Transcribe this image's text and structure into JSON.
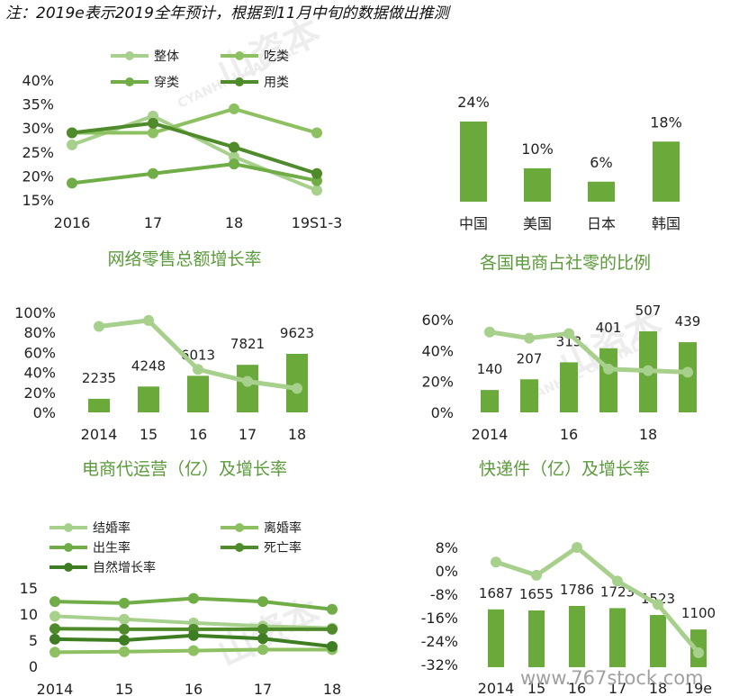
{
  "note": "注：2019e表示2019全年预计，根据到11月中旬的数据做出推测",
  "watermark": {
    "cn": "山资本",
    "en": "CYANHILL CAPITAL",
    "url": "www.767stock.com"
  },
  "colors": {
    "light": "#a8d08d",
    "mid": "#8dc060",
    "green": "#70ad47",
    "dark": "#4f8a2b",
    "darkest": "#3e7d21",
    "bar": "#6aaa3a"
  },
  "chart_data": [
    {
      "id": "c1",
      "type": "line",
      "title": "网络零售总额增长率",
      "categories": [
        "2016",
        "17",
        "18",
        "19S1-3"
      ],
      "yticks": [
        "15%",
        "20%",
        "25%",
        "30%",
        "35%",
        "40%"
      ],
      "ylim": [
        15,
        40
      ],
      "legend": [
        "整体",
        "吃类",
        "穿类",
        "用类"
      ],
      "series": [
        {
          "name": "整体",
          "values": [
            26.5,
            32.5,
            24,
            17
          ],
          "color": "#a8d08d"
        },
        {
          "name": "吃类",
          "values": [
            29,
            29,
            34,
            29
          ],
          "color": "#8dc060"
        },
        {
          "name": "穿类",
          "values": [
            18.5,
            20.5,
            22.5,
            19
          ],
          "color": "#70ad47"
        },
        {
          "name": "用类",
          "values": [
            29,
            31,
            26,
            20.5
          ],
          "color": "#4f8a2b"
        }
      ]
    },
    {
      "id": "c2",
      "type": "bar",
      "title": "各国电商占社零的比例",
      "categories": [
        "中国",
        "美国",
        "日本",
        "韩国"
      ],
      "values": [
        24,
        10,
        6,
        18
      ],
      "labels": [
        "24%",
        "10%",
        "6%",
        "18%"
      ]
    },
    {
      "id": "c3",
      "type": "bar+line",
      "title": "电商代运营（亿）及增长率",
      "categories": [
        "2014",
        "15",
        "16",
        "17",
        "18"
      ],
      "bar_values": [
        2235,
        4248,
        6013,
        7821,
        9623
      ],
      "bar_labels": [
        "2235",
        "4248",
        "6013",
        "7821",
        "9623"
      ],
      "line_values": [
        86,
        92,
        43,
        31,
        24
      ],
      "yticks": [
        "0%",
        "20%",
        "40%",
        "60%",
        "80%",
        "100%"
      ],
      "ylim": [
        0,
        100
      ]
    },
    {
      "id": "c4",
      "type": "bar+line",
      "title": "快递件（亿）及增长率",
      "categories": [
        "2014",
        "",
        "16",
        "",
        "18",
        ""
      ],
      "bar_values": [
        140,
        207,
        313,
        401,
        507,
        439
      ],
      "bar_labels": [
        "140",
        "207",
        "313",
        "401",
        "507",
        "439"
      ],
      "line_values": [
        52,
        48,
        51,
        28,
        27,
        26
      ],
      "yticks": [
        "0%",
        "20%",
        "40%",
        "60%"
      ],
      "ylim": [
        0,
        60
      ]
    },
    {
      "id": "c5",
      "type": "line",
      "title": "",
      "categories": [
        "2014",
        "15",
        "16",
        "17",
        "18"
      ],
      "yticks": [
        "0",
        "5",
        "10",
        "15"
      ],
      "ylim": [
        0,
        15
      ],
      "legend": [
        "结婚率",
        "离婚率",
        "出生率",
        "死亡率",
        "自然增长率"
      ],
      "series": [
        {
          "name": "结婚率",
          "values": [
            9.6,
            9.0,
            8.3,
            7.7,
            7.3
          ],
          "color": "#a8d08d"
        },
        {
          "name": "离婚率",
          "values": [
            2.7,
            2.8,
            3.0,
            3.2,
            3.2
          ],
          "color": "#8dc060"
        },
        {
          "name": "出生率",
          "values": [
            12.4,
            12.1,
            13.0,
            12.4,
            10.9
          ],
          "color": "#70ad47"
        },
        {
          "name": "死亡率",
          "values": [
            7.2,
            7.1,
            7.1,
            7.1,
            7.1
          ],
          "color": "#4f8a2b"
        },
        {
          "name": "自然增长率",
          "values": [
            5.2,
            5.0,
            5.9,
            5.3,
            3.8
          ],
          "color": "#3e7d21"
        }
      ]
    },
    {
      "id": "c6",
      "type": "bar+line",
      "title": "",
      "categories": [
        "2014",
        "15",
        "16",
        "17",
        "18",
        "19e"
      ],
      "bar_values": [
        1687,
        1655,
        1786,
        1723,
        1523,
        1100
      ],
      "bar_labels": [
        "1687",
        "1655",
        "1786",
        "1723",
        "1523",
        "1100"
      ],
      "line_values": [
        3,
        -1.5,
        8,
        -3.5,
        -11.5,
        -28
      ],
      "yticks": [
        "-32%",
        "-24%",
        "-16%",
        "-8%",
        "0%",
        "8%"
      ],
      "ylim": [
        -32,
        8
      ]
    }
  ]
}
